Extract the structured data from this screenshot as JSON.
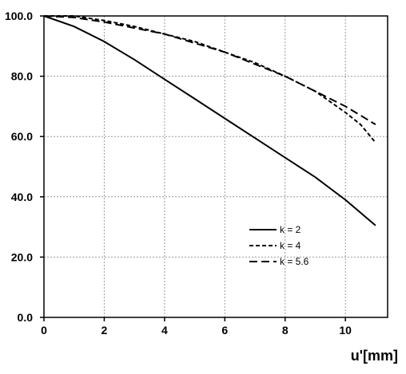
{
  "chart_data": {
    "type": "line",
    "xlabel": "u'[mm]",
    "ylabel": "",
    "xlim": [
      0,
      11.4
    ],
    "ylim": [
      0,
      100
    ],
    "xticks": [
      0,
      2,
      4,
      6,
      8,
      10
    ],
    "xtick_labels": [
      "0",
      "2",
      "4",
      "6",
      "8",
      "10"
    ],
    "yticks": [
      0,
      20,
      40,
      60,
      80,
      100
    ],
    "ytick_labels": [
      "0.0",
      "20.0",
      "40.0",
      "60.0",
      "80.0",
      "100.0"
    ],
    "grid": true,
    "legend_position": "lower-right",
    "series": [
      {
        "name": "k = 2",
        "dash": "solid",
        "x": [
          0,
          1,
          2,
          3,
          4,
          5,
          6,
          7,
          8,
          9,
          10,
          11
        ],
        "y": [
          100,
          96.5,
          91.5,
          85.5,
          79,
          72.5,
          66,
          59.5,
          53,
          46.5,
          39,
          30.5
        ]
      },
      {
        "name": "k = 4",
        "dash": "short-dash",
        "x": [
          0,
          1,
          2,
          3,
          4,
          5,
          6,
          7,
          8,
          9,
          10,
          10.5,
          11
        ],
        "y": [
          100,
          100,
          98.5,
          96.5,
          94,
          91.5,
          88,
          84.5,
          80,
          75,
          68,
          64,
          58
        ]
      },
      {
        "name": "k = 5.6",
        "dash": "long-dash",
        "x": [
          0,
          1,
          2,
          3,
          4,
          5,
          6,
          7,
          8,
          9,
          10,
          10.5,
          11
        ],
        "y": [
          100,
          99.5,
          98,
          96,
          94,
          91,
          88,
          84,
          80,
          75,
          70,
          67,
          64
        ]
      }
    ]
  }
}
